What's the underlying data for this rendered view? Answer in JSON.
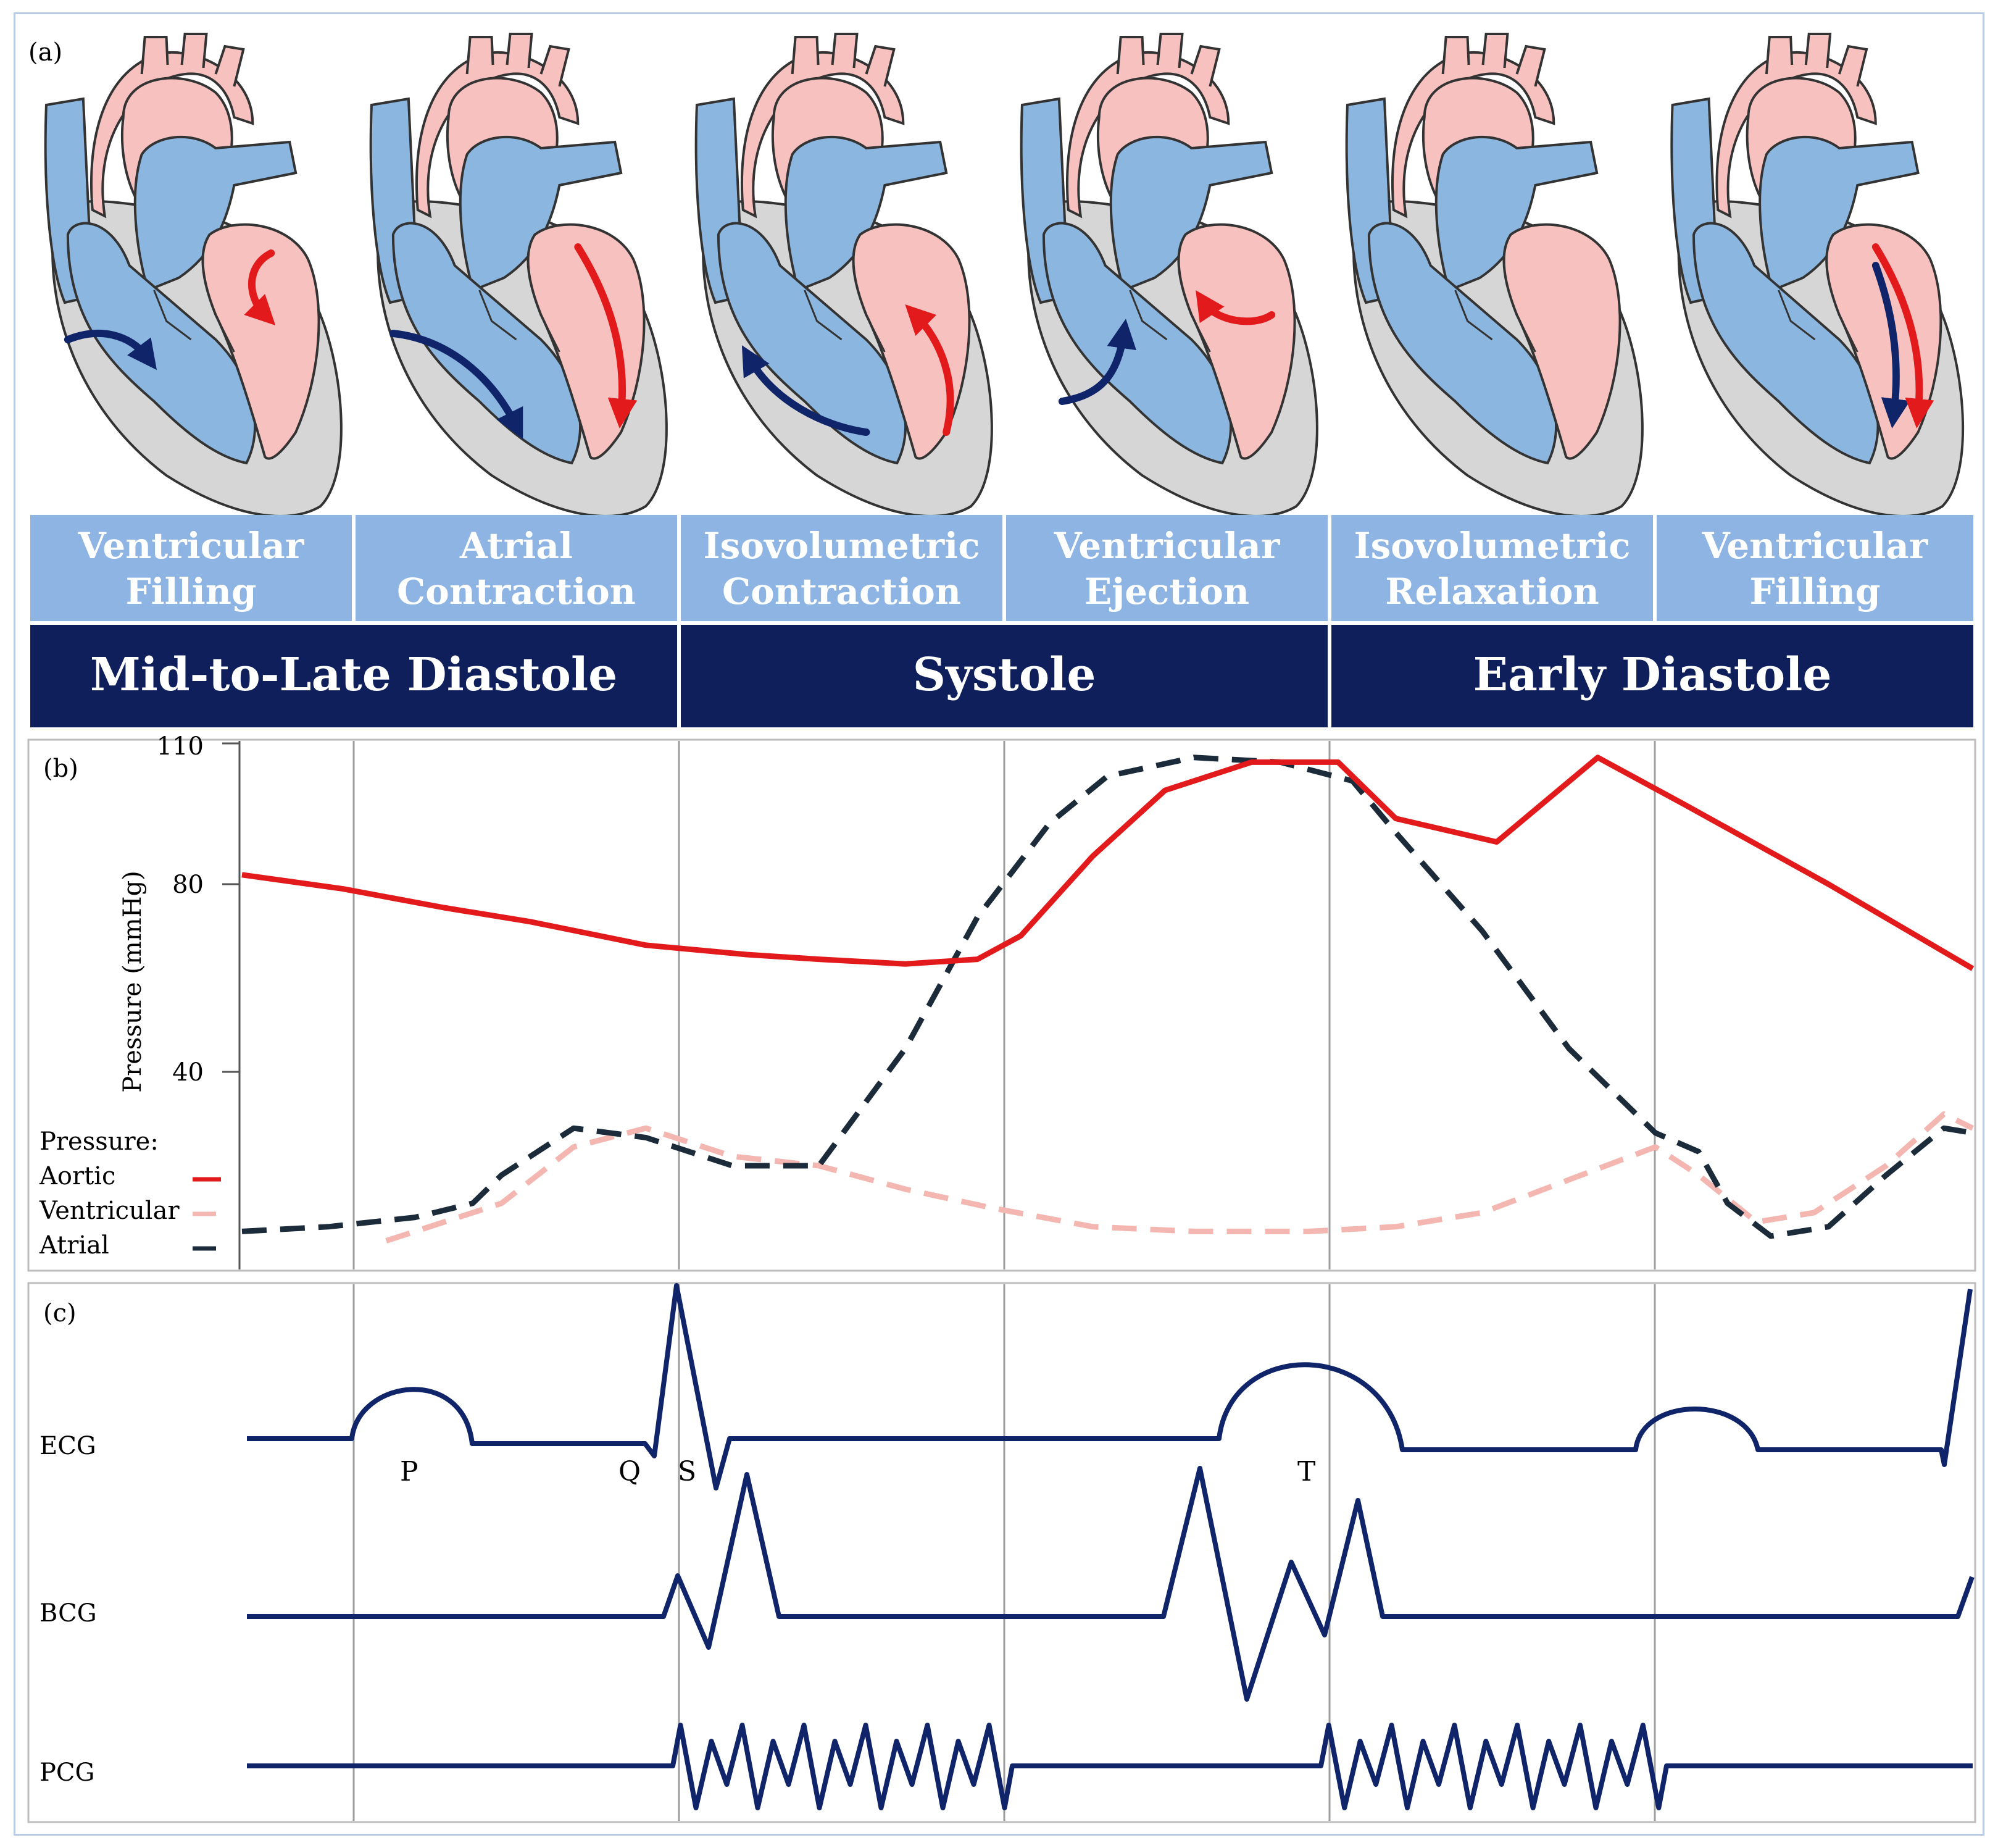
{
  "panel_labels": {
    "a": "(a)",
    "b": "(b)",
    "c": "(c)"
  },
  "phases": [
    {
      "line1": "Ventricular",
      "line2": "Filling"
    },
    {
      "line1": "Atrial",
      "line2": "Contraction"
    },
    {
      "line1": "Isovolumetric",
      "line2": "Contraction"
    },
    {
      "line1": "Ventricular",
      "line2": "Ejection"
    },
    {
      "line1": "Isovolumetric",
      "line2": "Relaxation"
    },
    {
      "line1": "Ventricular",
      "line2": "Filling"
    }
  ],
  "cycles": [
    "Mid-to-Late Diastole",
    "Systole",
    "Early Diastole"
  ],
  "colors": {
    "phase_box": "#8db4e2",
    "cycle_box": "#0f1f5c",
    "aortic": "#e31a1c",
    "ventricular": "#f4b6b0",
    "atrial": "#1c2b3a",
    "signal": "#10246a",
    "heart_blue": "#8bb6e0",
    "heart_pink": "#f7c1bf",
    "heart_gray": "#d6d6d6",
    "arrow_blue": "#10246a",
    "arrow_red": "#e31a1c"
  },
  "heart_arrows": [
    {
      "blue": "right-to-ventricle-short",
      "red": "down-short"
    },
    {
      "blue": "right-to-ventricle-long",
      "red": "down-long"
    },
    {
      "blue": "up-from-ventricle",
      "red": "up-from-ventricle"
    },
    {
      "blue": "up-to-pulmonary",
      "red": "left-to-aorta"
    },
    {
      "blue": "none",
      "red": "none"
    },
    {
      "blue": "down-long",
      "red": "down-long"
    }
  ],
  "chart_data": {
    "type": "line",
    "ylabel": "Pressure (mmHg)",
    "yticks": [
      "110",
      "80",
      "40"
    ],
    "ylim": [
      0,
      110
    ],
    "legend": {
      "title": "Pressure:",
      "items": [
        "Aortic",
        "Ventricular",
        "Atrial"
      ],
      "placement": "bottom-left"
    },
    "x_unit": "cardiac cycle phases (0–6)",
    "series": [
      {
        "name": "Aortic",
        "style": "solid",
        "color": "#e31a1c",
        "x": [
          0,
          0.35,
          0.7,
          1.0,
          1.4,
          1.75,
          2.0,
          2.3,
          2.55,
          2.7,
          2.95,
          3.2,
          3.5,
          3.8,
          4.0,
          4.35,
          4.7,
          5.0,
          5.5,
          6.0
        ],
        "y": [
          82,
          79,
          75,
          72,
          67,
          65,
          64,
          63,
          64,
          69,
          86,
          100,
          106,
          106,
          94,
          89,
          107,
          97,
          80,
          62
        ]
      },
      {
        "name": "Ventricular",
        "style": "dashed",
        "color": "#f4b6b0",
        "x": [
          0.5,
          0.9,
          1.15,
          1.4,
          1.7,
          2.0,
          2.3,
          2.6,
          2.95,
          3.3,
          3.7,
          4.0,
          4.3,
          4.6,
          4.9,
          5.05,
          5.25,
          5.45,
          5.7,
          5.9,
          6.0
        ],
        "y": [
          4,
          12,
          24,
          28,
          22,
          20,
          15,
          11,
          7,
          6,
          6,
          7,
          10,
          17,
          24,
          18,
          8,
          10,
          20,
          31,
          28
        ]
      },
      {
        "name": "Atrial",
        "style": "dashed",
        "color": "#1c2b3a",
        "x": [
          0,
          0.3,
          0.6,
          0.8,
          0.9,
          1.15,
          1.4,
          1.7,
          2.0,
          2.3,
          2.55,
          2.8,
          3.0,
          3.3,
          3.6,
          3.85,
          4.0,
          4.3,
          4.6,
          4.9,
          5.05,
          5.15,
          5.3,
          5.5,
          5.7,
          5.9,
          6.0
        ],
        "y": [
          6,
          7,
          9,
          12,
          18,
          28,
          26,
          20,
          20,
          45,
          73,
          93,
          103,
          107,
          106,
          102,
          91,
          70,
          45,
          27,
          23,
          12,
          5,
          7,
          18,
          28,
          27
        ]
      }
    ],
    "signals": [
      {
        "name": "ECG",
        "peak_labels": [
          "P",
          "Q",
          "S",
          "T"
        ]
      },
      {
        "name": "BCG"
      },
      {
        "name": "PCG"
      }
    ]
  }
}
